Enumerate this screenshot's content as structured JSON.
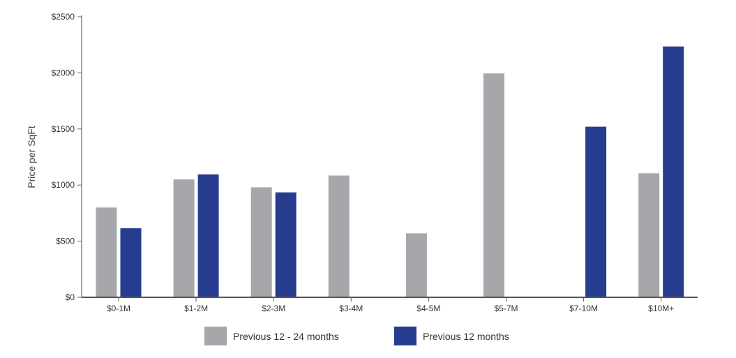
{
  "chart_data": {
    "type": "bar",
    "title": "",
    "xlabel": "",
    "ylabel": "Price per SqFt",
    "categories": [
      "$0-1M",
      "$1-2M",
      "$2-3M",
      "$3-4M",
      "$4-5M",
      "$5-7M",
      "$7-10M",
      "$10M+"
    ],
    "yticks": [
      "$0",
      "$500",
      "$1000",
      "$1500",
      "$2000",
      "$2500"
    ],
    "ylim": [
      0,
      2500
    ],
    "grid": false,
    "legend_position": "bottom",
    "series": [
      {
        "name": "Previous 12 - 24 months",
        "color": "#a6a7aa",
        "values": [
          800,
          1050,
          980,
          1085,
          570,
          1995,
          null,
          1105
        ]
      },
      {
        "name": "Previous 12 months",
        "color": "#263d8f",
        "values": [
          615,
          1095,
          935,
          null,
          null,
          null,
          1520,
          2235
        ]
      }
    ]
  }
}
